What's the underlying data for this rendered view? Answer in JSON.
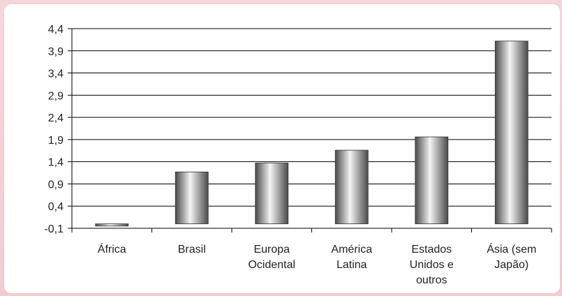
{
  "chart_data": {
    "type": "bar",
    "categories": [
      [
        "África"
      ],
      [
        "Brasil"
      ],
      [
        "Europa",
        "Ocidental"
      ],
      [
        "América",
        "Latina"
      ],
      [
        "Estados",
        "Unidos e",
        "outros"
      ],
      [
        "Ásia (sem",
        "Japão)"
      ]
    ],
    "values": [
      -0.05,
      1.17,
      1.37,
      1.66,
      1.96,
      4.12
    ],
    "yticks": [
      "4,4",
      "3,9",
      "3,4",
      "2,9",
      "2,4",
      "1,9",
      "1,4",
      "0,9",
      "0,4",
      "-0,1"
    ],
    "ylim": [
      -0.1,
      4.4
    ],
    "ytick_step": 0.5,
    "grid": true,
    "title": "",
    "xlabel": "",
    "ylabel": "",
    "colors": {
      "bar_dark": "#4a4a4a",
      "bar_light": "#f4f4f4",
      "grid": "#000000",
      "background": "#ffffff",
      "frame": "#f2cfd3"
    }
  }
}
